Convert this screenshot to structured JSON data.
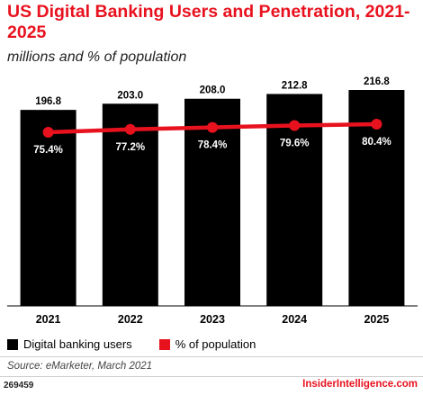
{
  "header": {
    "title": "US Digital Banking Users and Penetration, 2021-2025",
    "subtitle": "millions and % of population"
  },
  "legend": {
    "bar_label": "Digital banking users",
    "line_label": "% of population"
  },
  "footer": {
    "source": "Source: eMarketer, March 2021",
    "id": "269459",
    "brand": "InsiderIntelligence.com"
  },
  "colors": {
    "bar": "#000000",
    "line": "#e8121f",
    "title": "#e8121f"
  },
  "chart_data": {
    "type": "bar",
    "title": "US Digital Banking Users and Penetration, 2021-2025",
    "subtitle": "millions and % of population",
    "categories": [
      "2021",
      "2022",
      "2023",
      "2024",
      "2025"
    ],
    "series": [
      {
        "name": "Digital banking users",
        "type": "bar",
        "values": [
          196.8,
          203.0,
          208.0,
          212.8,
          216.8
        ],
        "labels": [
          "196.8",
          "203.0",
          "208.0",
          "212.8",
          "216.8"
        ]
      },
      {
        "name": "% of population",
        "type": "line",
        "values": [
          75.4,
          77.2,
          78.4,
          79.6,
          80.4
        ],
        "labels": [
          "75.4%",
          "77.2%",
          "78.4%",
          "79.6%",
          "80.4%"
        ]
      }
    ],
    "ylim_bar": [
      0,
      216.8
    ],
    "ylim_line": [
      0,
      100
    ],
    "grid": false,
    "legend_position": "bottom-left"
  }
}
